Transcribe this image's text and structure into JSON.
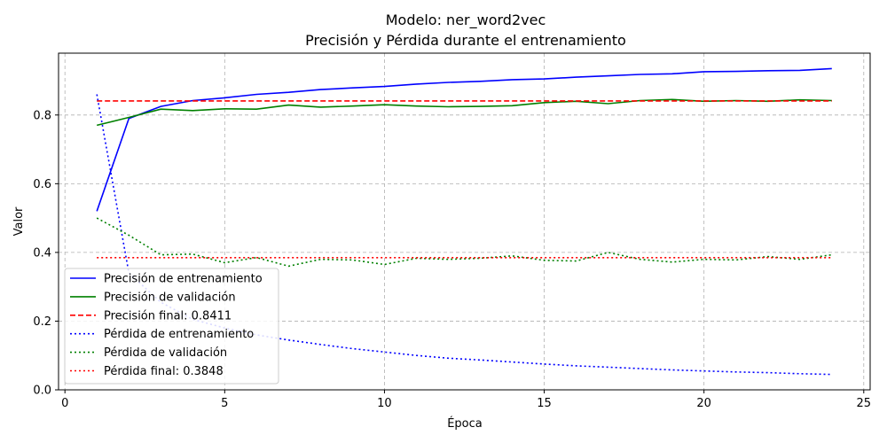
{
  "chart_data": {
    "type": "line",
    "title": "Modelo: ner_word2vec",
    "subtitle": "Precisión y Pérdida durante el entrenamiento",
    "xlabel": "Época",
    "ylabel": "Valor",
    "xlim": [
      -0.2,
      25.2
    ],
    "ylim": [
      0.0,
      0.98
    ],
    "xticks": [
      0,
      5,
      10,
      15,
      20,
      25
    ],
    "yticks": [
      0.0,
      0.2,
      0.4,
      0.6,
      0.8
    ],
    "xtick_labels": [
      "0",
      "5",
      "10",
      "15",
      "20",
      "25"
    ],
    "ytick_labels": [
      "0.0",
      "0.2",
      "0.4",
      "0.6",
      "0.8"
    ],
    "grid": true,
    "legend_position": "bottom-left",
    "x": [
      1,
      2,
      3,
      4,
      5,
      6,
      7,
      8,
      9,
      10,
      11,
      12,
      13,
      14,
      15,
      16,
      17,
      18,
      19,
      20,
      21,
      22,
      23,
      24
    ],
    "series": [
      {
        "name": "Precisión de entrenamiento",
        "color": "#0000ff",
        "style": "solid",
        "values": [
          0.52,
          0.79,
          0.825,
          0.842,
          0.85,
          0.86,
          0.866,
          0.874,
          0.879,
          0.883,
          0.89,
          0.895,
          0.898,
          0.903,
          0.905,
          0.91,
          0.914,
          0.918,
          0.92,
          0.926,
          0.927,
          0.929,
          0.93,
          0.935
        ]
      },
      {
        "name": "Precisión de validación",
        "color": "#008000",
        "style": "solid",
        "values": [
          0.77,
          0.793,
          0.817,
          0.813,
          0.818,
          0.817,
          0.829,
          0.823,
          0.826,
          0.83,
          0.826,
          0.824,
          0.825,
          0.827,
          0.836,
          0.84,
          0.833,
          0.842,
          0.845,
          0.84,
          0.842,
          0.84,
          0.844,
          0.842
        ]
      },
      {
        "name": "Precisión final: 0.8411",
        "color": "#ff0000",
        "style": "dashed",
        "values": [
          0.8411,
          0.8411,
          0.8411,
          0.8411,
          0.8411,
          0.8411,
          0.8411,
          0.8411,
          0.8411,
          0.8411,
          0.8411,
          0.8411,
          0.8411,
          0.8411,
          0.8411,
          0.8411,
          0.8411,
          0.8411,
          0.8411,
          0.8411,
          0.8411,
          0.8411,
          0.8411,
          0.8411
        ]
      },
      {
        "name": "Pérdida de entrenamiento",
        "color": "#0000ff",
        "style": "dotted",
        "values": [
          0.86,
          0.34,
          0.255,
          0.205,
          0.18,
          0.16,
          0.145,
          0.132,
          0.12,
          0.11,
          0.1,
          0.092,
          0.087,
          0.081,
          0.075,
          0.07,
          0.066,
          0.062,
          0.058,
          0.055,
          0.052,
          0.05,
          0.047,
          0.045
        ]
      },
      {
        "name": "Pérdida de validación",
        "color": "#008000",
        "style": "dotted",
        "values": [
          0.5,
          0.45,
          0.393,
          0.395,
          0.37,
          0.385,
          0.36,
          0.38,
          0.378,
          0.365,
          0.383,
          0.38,
          0.383,
          0.39,
          0.377,
          0.375,
          0.4,
          0.38,
          0.372,
          0.38,
          0.378,
          0.388,
          0.38,
          0.393
        ]
      },
      {
        "name": "Pérdida final: 0.3848",
        "color": "#ff0000",
        "style": "dotted",
        "values": [
          0.3848,
          0.3848,
          0.3848,
          0.3848,
          0.3848,
          0.3848,
          0.3848,
          0.3848,
          0.3848,
          0.3848,
          0.3848,
          0.3848,
          0.3848,
          0.3848,
          0.3848,
          0.3848,
          0.3848,
          0.3848,
          0.3848,
          0.3848,
          0.3848,
          0.3848,
          0.3848,
          0.3848
        ]
      }
    ]
  }
}
